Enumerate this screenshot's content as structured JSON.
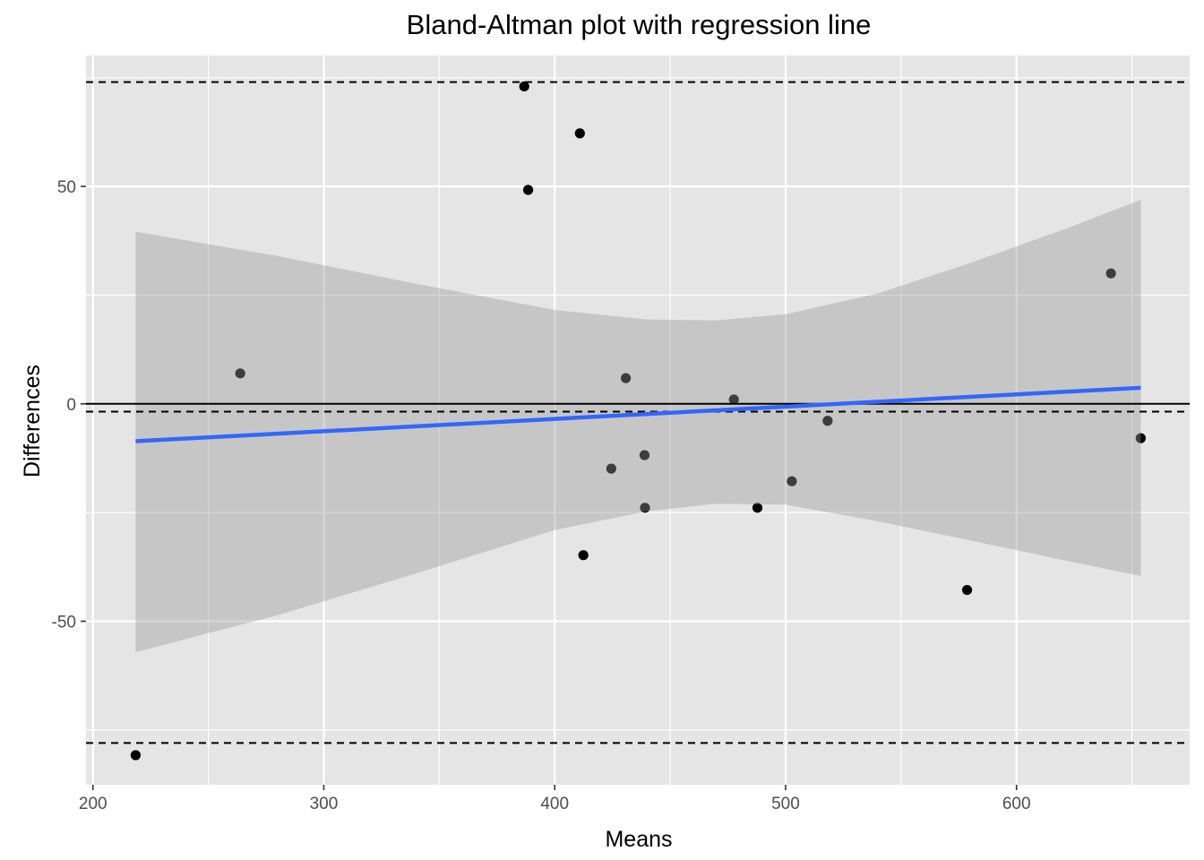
{
  "chart_data": {
    "type": "scatter",
    "title": "Bland-Altman plot with regression line",
    "xlabel": "Means",
    "ylabel": "Differences",
    "xlim": [
      197,
      675
    ],
    "ylim": [
      -87.6,
      80.1
    ],
    "x_ticks": [
      200,
      300,
      400,
      500,
      600
    ],
    "x_tick_labels": [
      "200",
      "300",
      "400",
      "500",
      "600"
    ],
    "y_ticks": [
      -50,
      0,
      50
    ],
    "y_tick_labels": [
      "-50",
      "0",
      "50"
    ],
    "grid": true,
    "legend": "none",
    "points": [
      {
        "x": 218.5,
        "y": -80.8
      },
      {
        "x": 263.8,
        "y": 7.0
      },
      {
        "x": 386.8,
        "y": 73.0
      },
      {
        "x": 388.5,
        "y": 49.2
      },
      {
        "x": 410.9,
        "y": 62.2
      },
      {
        "x": 412.4,
        "y": -34.8
      },
      {
        "x": 424.5,
        "y": -14.9
      },
      {
        "x": 430.8,
        "y": 5.9
      },
      {
        "x": 438.9,
        "y": -11.8
      },
      {
        "x": 439.1,
        "y": -23.9
      },
      {
        "x": 477.6,
        "y": 1.0
      },
      {
        "x": 487.8,
        "y": -23.9
      },
      {
        "x": 502.7,
        "y": -17.8
      },
      {
        "x": 518.2,
        "y": -3.9
      },
      {
        "x": 578.6,
        "y": -42.8
      },
      {
        "x": 640.9,
        "y": 30.0
      },
      {
        "x": 653.8,
        "y": -7.9
      }
    ],
    "reference_lines": [
      {
        "y": 0,
        "style": "solid"
      },
      {
        "y": -1.8,
        "style": "dashed"
      },
      {
        "y": 74.0,
        "style": "dashed"
      },
      {
        "y": -78.0,
        "style": "dashed"
      }
    ],
    "regression_line": {
      "x": [
        218.5,
        653.8
      ],
      "y": [
        -8.6,
        3.7
      ],
      "color": "#3366ff"
    },
    "confidence_band": {
      "x": [
        218.5,
        280,
        340,
        400,
        440,
        470,
        500,
        540,
        580,
        620,
        653.8
      ],
      "upper": [
        39.6,
        34.0,
        27.6,
        21.6,
        19.4,
        19.2,
        20.6,
        25.4,
        32.4,
        40.0,
        46.9
      ],
      "lower": [
        -57.1,
        -48.6,
        -39.0,
        -29.0,
        -24.7,
        -23.0,
        -23.2,
        -27.0,
        -31.4,
        -35.9,
        -39.6
      ]
    },
    "colors": {
      "panel_background": "#e5e5e5",
      "grid": "#ffffff",
      "points": "#000000",
      "band": "#999999",
      "regression": "#3366ff"
    }
  }
}
